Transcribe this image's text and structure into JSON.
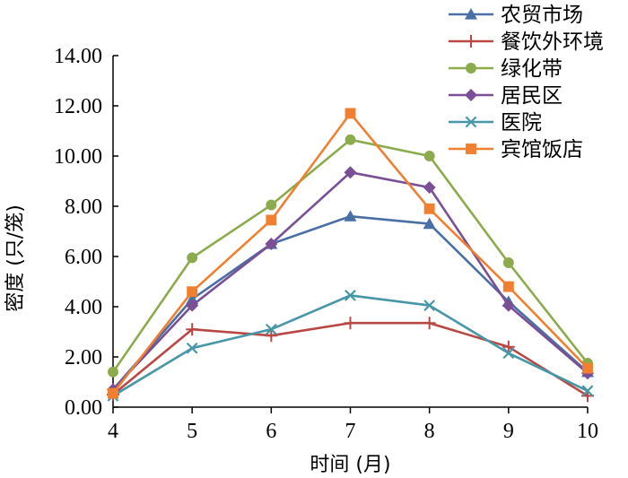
{
  "chart_data": {
    "type": "line",
    "title": "",
    "xlabel": "时间 (月)",
    "ylabel": "密度 (只/笼)",
    "x": [
      4,
      5,
      6,
      7,
      8,
      9,
      10
    ],
    "xlim": [
      4,
      10
    ],
    "ylim": [
      0,
      14
    ],
    "yticks": [
      "0.00",
      "2.00",
      "4.00",
      "6.00",
      "8.00",
      "10.00",
      "12.00",
      "14.00"
    ],
    "grid": false,
    "legend_position": "top-right",
    "series": [
      {
        "name": "农贸市场",
        "color": "#4a6fa5",
        "marker": "triangle",
        "values": [
          0.7,
          4.3,
          6.5,
          7.6,
          7.3,
          4.2,
          1.4
        ]
      },
      {
        "name": "餐饮外环境",
        "color": "#b94845",
        "marker": "plus",
        "values": [
          0.5,
          3.1,
          2.85,
          3.35,
          3.35,
          2.4,
          0.45
        ]
      },
      {
        "name": "绿化带",
        "color": "#8bab4c",
        "marker": "circle",
        "values": [
          1.4,
          5.95,
          8.05,
          10.65,
          10.0,
          5.75,
          1.75
        ]
      },
      {
        "name": "居民区",
        "color": "#7a4f95",
        "marker": "diamond",
        "values": [
          0.7,
          4.05,
          6.5,
          9.35,
          8.75,
          4.05,
          1.35
        ]
      },
      {
        "name": "医院",
        "color": "#4797a8",
        "marker": "x",
        "values": [
          0.45,
          2.35,
          3.1,
          4.45,
          4.05,
          2.15,
          0.65
        ]
      },
      {
        "name": "宾馆饭店",
        "color": "#f08030",
        "marker": "square",
        "values": [
          0.55,
          4.6,
          7.45,
          11.7,
          7.9,
          4.8,
          1.55
        ]
      }
    ]
  }
}
